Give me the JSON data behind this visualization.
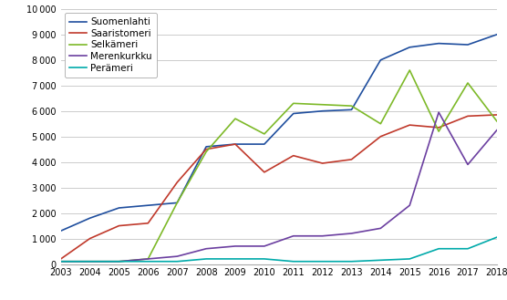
{
  "years": [
    2003,
    2004,
    2005,
    2006,
    2007,
    2008,
    2009,
    2010,
    2011,
    2012,
    2013,
    2014,
    2015,
    2016,
    2017,
    2018
  ],
  "series": {
    "Suomenlahti": [
      1300,
      1800,
      2200,
      2300,
      2400,
      4600,
      4700,
      4700,
      5900,
      6000,
      6050,
      8000,
      8500,
      8650,
      8600,
      9000
    ],
    "Saaristomeri": [
      200,
      1000,
      1500,
      1600,
      3200,
      4500,
      4700,
      3600,
      4250,
      3950,
      4100,
      5000,
      5450,
      5350,
      5800,
      5850
    ],
    "Selkämeri": [
      100,
      100,
      100,
      200,
      2400,
      4400,
      5700,
      5100,
      6300,
      6250,
      6200,
      5500,
      7600,
      5200,
      7100,
      5600
    ],
    "Merenkurkku": [
      100,
      100,
      100,
      200,
      300,
      600,
      700,
      700,
      1100,
      1100,
      1200,
      1400,
      2300,
      5950,
      3900,
      5250
    ],
    "Perämeri": [
      100,
      100,
      100,
      100,
      100,
      200,
      200,
      200,
      100,
      100,
      100,
      150,
      200,
      600,
      600,
      1050
    ]
  },
  "colors": {
    "Suomenlahti": "#1f4e9e",
    "Saaristomeri": "#c0392b",
    "Selkämeri": "#7db928",
    "Merenkurkku": "#6b3fa0",
    "Perämeri": "#00aaaa"
  },
  "ylim": [
    0,
    10000
  ],
  "yticks": [
    0,
    1000,
    2000,
    3000,
    4000,
    5000,
    6000,
    7000,
    8000,
    9000,
    10000
  ],
  "background_color": "#ffffff",
  "grid_color": "#cccccc",
  "figsize": [
    5.56,
    3.29
  ],
  "dpi": 100
}
